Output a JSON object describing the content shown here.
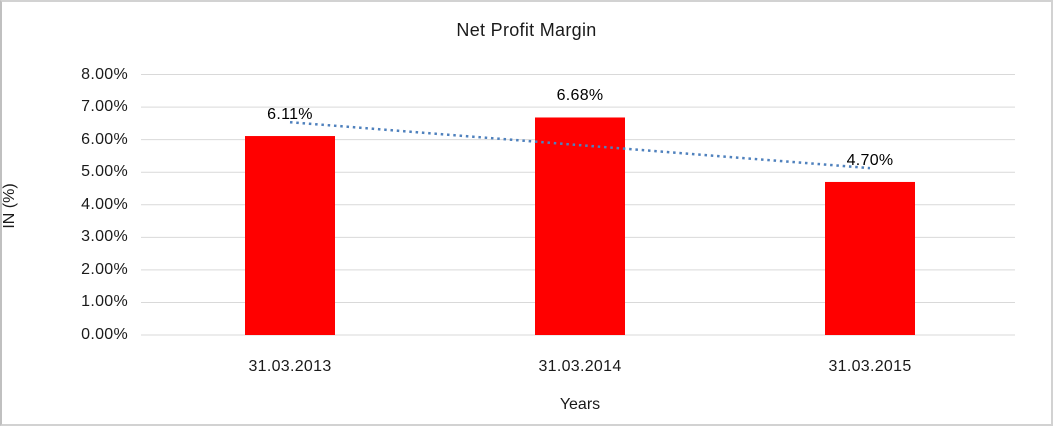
{
  "frame": {
    "background": "#ffffff",
    "border_color": "#d2d2d2"
  },
  "chart_data": {
    "type": "bar",
    "title": "Net Profit Margin",
    "xlabel": "Years",
    "ylabel": "IN (%)",
    "categories": [
      "31.03.2013",
      "31.03.2014",
      "31.03.2015"
    ],
    "series": [
      {
        "name": "Net Profit Margin",
        "values": [
          6.11,
          6.68,
          4.7
        ]
      }
    ],
    "data_labels": [
      "6.11%",
      "6.68%",
      "4.70%"
    ],
    "ytick_labels": [
      "0.00%",
      "1.00%",
      "2.00%",
      "3.00%",
      "4.00%",
      "5.00%",
      "6.00%",
      "7.00%",
      "8.00%"
    ],
    "ylim": [
      0,
      8
    ],
    "ytick_step": 1,
    "grid": true,
    "legend": "none",
    "bar_color": "#ff0000",
    "gridline_color": "#d9d9d9",
    "axis_text_color": "#1a1a1a",
    "trendline": {
      "type": "linear",
      "style": "dotted",
      "color": "#4f81bd"
    }
  }
}
